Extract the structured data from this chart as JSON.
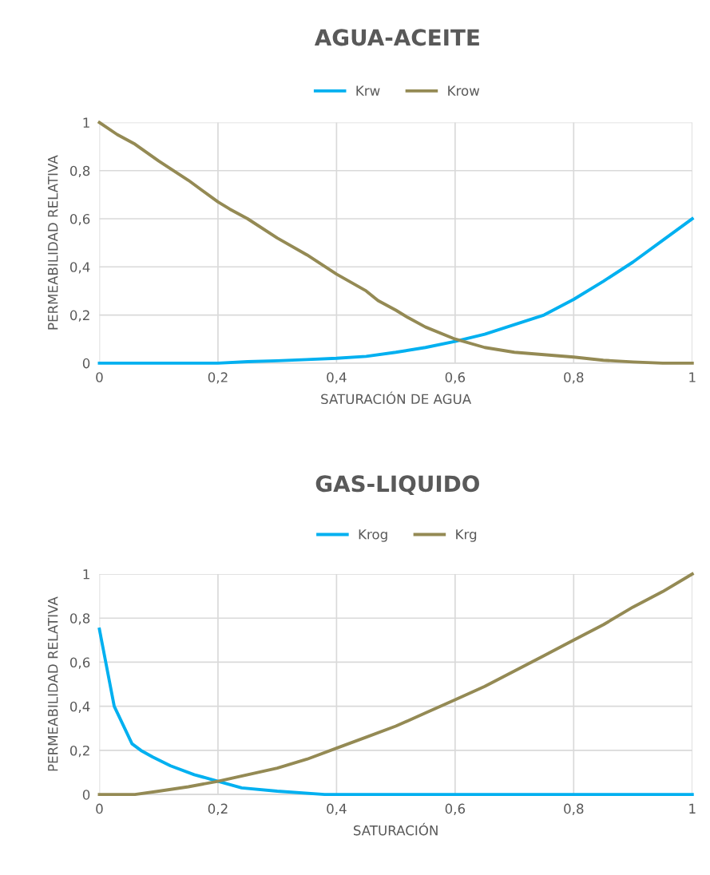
{
  "chart_data": [
    {
      "type": "line",
      "title": "AGUA-ACEITE",
      "xlabel": "SATURACIÓN DE AGUA",
      "ylabel": "PERMEABILIDAD RELATIVA",
      "legend": "top",
      "grid": true,
      "xlim": [
        0,
        1
      ],
      "ylim": [
        0,
        1
      ],
      "xticks": [
        0,
        {
          "value": 0.2,
          "label": "0,2"
        },
        {
          "value": 0.4,
          "label": "0,4"
        },
        {
          "value": 0.6,
          "label": "0,6"
        },
        {
          "value": 0.8,
          "label": "0,8"
        },
        1
      ],
      "yticks": [
        0,
        {
          "value": 0.2,
          "label": "0,2"
        },
        {
          "value": 0.4,
          "label": "0,4"
        },
        {
          "value": 0.6,
          "label": "0,6"
        },
        {
          "value": 0.8,
          "label": "0,8"
        },
        1
      ],
      "series": [
        {
          "name": "Krw",
          "color": "#00b0f0",
          "x": [
            0,
            0.2,
            0.25,
            0.3,
            0.35,
            0.4,
            0.45,
            0.5,
            0.55,
            0.6,
            0.65,
            0.7,
            0.75,
            0.8,
            0.85,
            0.9,
            0.95,
            1
          ],
          "values": [
            0,
            0,
            0.006,
            0.01,
            0.015,
            0.02,
            0.028,
            0.045,
            0.065,
            0.09,
            0.12,
            0.16,
            0.2,
            0.265,
            0.34,
            0.42,
            0.51,
            0.6
          ]
        },
        {
          "name": "Krow",
          "color": "#948a54",
          "x": [
            0,
            0.03,
            0.06,
            0.1,
            0.15,
            0.2,
            0.22,
            0.25,
            0.3,
            0.35,
            0.4,
            0.45,
            0.47,
            0.5,
            0.52,
            0.55,
            0.6,
            0.65,
            0.7,
            0.75,
            0.8,
            0.85,
            0.9,
            0.95,
            1
          ],
          "values": [
            1,
            0.95,
            0.91,
            0.84,
            0.76,
            0.67,
            0.64,
            0.6,
            0.52,
            0.45,
            0.37,
            0.3,
            0.26,
            0.22,
            0.19,
            0.15,
            0.1,
            0.065,
            0.045,
            0.035,
            0.025,
            0.012,
            0.005,
            0,
            0
          ]
        }
      ]
    },
    {
      "type": "line",
      "title": "GAS-LIQUIDO",
      "xlabel": "SATURACIÓN",
      "ylabel": "PERMEABILIDAD RELATIVA",
      "legend": "top",
      "grid": true,
      "xlim": [
        0,
        1
      ],
      "ylim": [
        0,
        1
      ],
      "xticks": [
        0,
        {
          "value": 0.2,
          "label": "0,2"
        },
        {
          "value": 0.4,
          "label": "0,4"
        },
        {
          "value": 0.6,
          "label": "0,6"
        },
        {
          "value": 0.8,
          "label": "0,8"
        },
        1
      ],
      "yticks": [
        0,
        {
          "value": 0.2,
          "label": "0,2"
        },
        {
          "value": 0.4,
          "label": "0,4"
        },
        {
          "value": 0.6,
          "label": "0,6"
        },
        {
          "value": 0.8,
          "label": "0,8"
        },
        1
      ],
      "series": [
        {
          "name": "Krog",
          "color": "#00b0f0",
          "x": [
            0,
            0.025,
            0.055,
            0.07,
            0.09,
            0.12,
            0.16,
            0.2,
            0.24,
            0.3,
            0.38,
            1
          ],
          "values": [
            0.75,
            0.4,
            0.23,
            0.2,
            0.17,
            0.13,
            0.09,
            0.06,
            0.03,
            0.015,
            0,
            0
          ]
        },
        {
          "name": "Krg",
          "color": "#948a54",
          "x": [
            0,
            0.06,
            0.1,
            0.15,
            0.2,
            0.25,
            0.3,
            0.35,
            0.4,
            0.45,
            0.5,
            0.55,
            0.6,
            0.65,
            0.7,
            0.75,
            0.8,
            0.85,
            0.9,
            0.95,
            1
          ],
          "values": [
            0,
            0,
            0.015,
            0.035,
            0.06,
            0.09,
            0.12,
            0.16,
            0.21,
            0.26,
            0.31,
            0.37,
            0.43,
            0.49,
            0.56,
            0.63,
            0.7,
            0.77,
            0.85,
            0.92,
            1
          ]
        }
      ]
    }
  ]
}
